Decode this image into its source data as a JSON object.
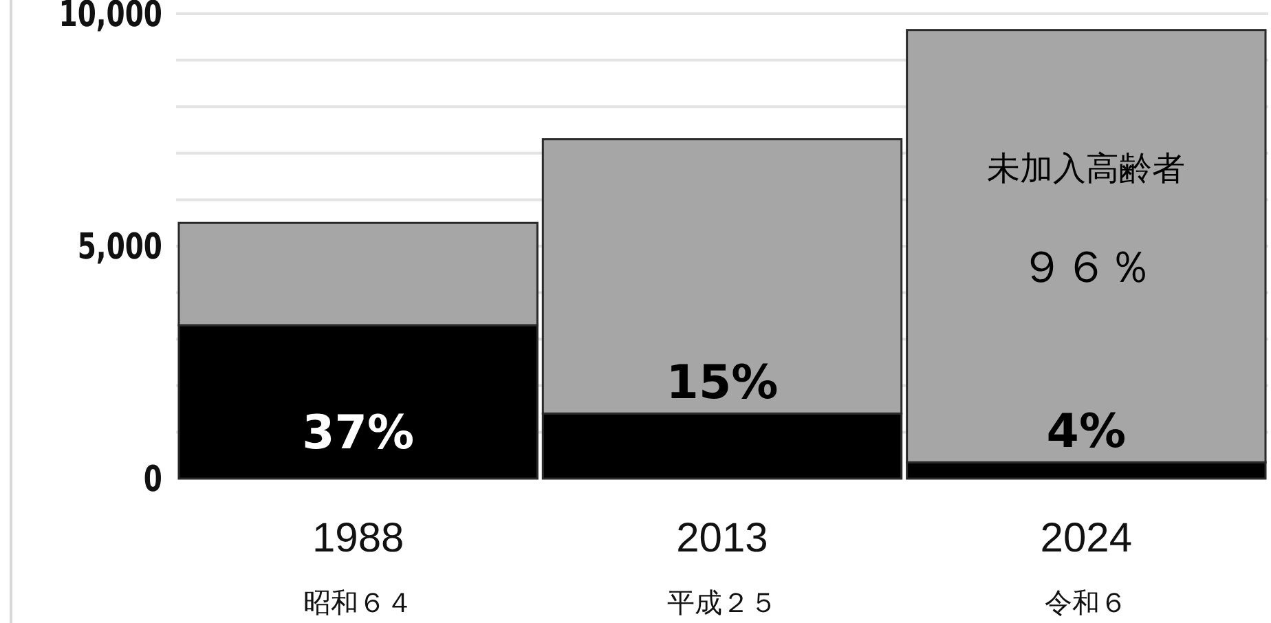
{
  "chart_data": {
    "type": "bar",
    "stacked": true,
    "categories": [
      "1988\n昭和６４",
      "2013\n平成２５",
      "2024\n令和６"
    ],
    "series": [
      {
        "color": "#000000",
        "values": [
          3300,
          1400,
          350
        ]
      },
      {
        "color": "#a6a6a6",
        "values": [
          2200,
          5900,
          9300
        ]
      }
    ],
    "annotations": [
      "37%",
      "15%",
      "4%",
      "未加入高齢者",
      "９６％"
    ],
    "ylim": [
      0,
      10000
    ],
    "yticks": [
      {
        "value": 0,
        "label": "0"
      },
      {
        "value": 5000,
        "label": "5,000"
      },
      {
        "value": 10000,
        "label": "10,000"
      }
    ],
    "grid": "y"
  }
}
